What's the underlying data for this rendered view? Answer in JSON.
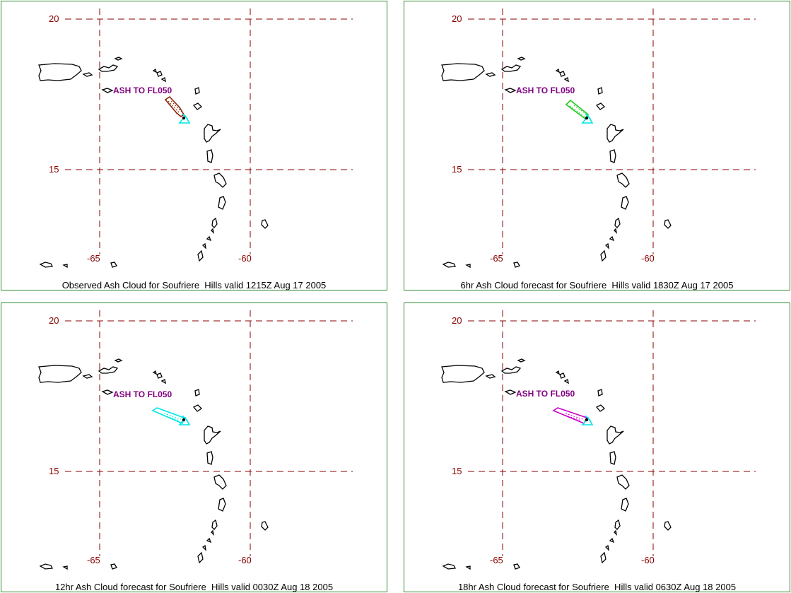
{
  "grid_color": "#8b0000",
  "coast_color": "#000000",
  "panels": [
    {
      "caption": "Observed Ash Cloud for Soufriere  Hills valid 1215Z Aug 17 2005",
      "label": "ASH TO FL050",
      "cloud_color": "#8b2500",
      "arrow_color": "#00e5e5",
      "lat_labels": [
        "20",
        "15"
      ],
      "lon_labels": [
        "-65",
        "-60"
      ]
    },
    {
      "caption": "6hr Ash Cloud forecast for Soufriere  Hills valid 1830Z Aug 17 2005",
      "label": "ASH TO FL050",
      "cloud_color": "#22cc22",
      "arrow_color": "#00e5e5",
      "lat_labels": [
        "20",
        "15"
      ],
      "lon_labels": [
        "-65",
        "-60"
      ]
    },
    {
      "caption": "12hr Ash Cloud forecast for Soufriere  Hills valid 0030Z Aug 18 2005",
      "label": "ASH TO FL050",
      "cloud_color": "#00e5e5",
      "arrow_color": "#00e5e5",
      "lat_labels": [
        "20",
        "15"
      ],
      "lon_labels": [
        "-65",
        "-60"
      ]
    },
    {
      "caption": "18hr Ash Cloud forecast for Soufriere  Hills valid 0630Z Aug 18 2005",
      "label": "ASH TO FL050",
      "cloud_color": "#cc00cc",
      "arrow_color": "#00e5e5",
      "lat_labels": [
        "20",
        "15"
      ],
      "lon_labels": [
        "-65",
        "-60"
      ]
    }
  ]
}
